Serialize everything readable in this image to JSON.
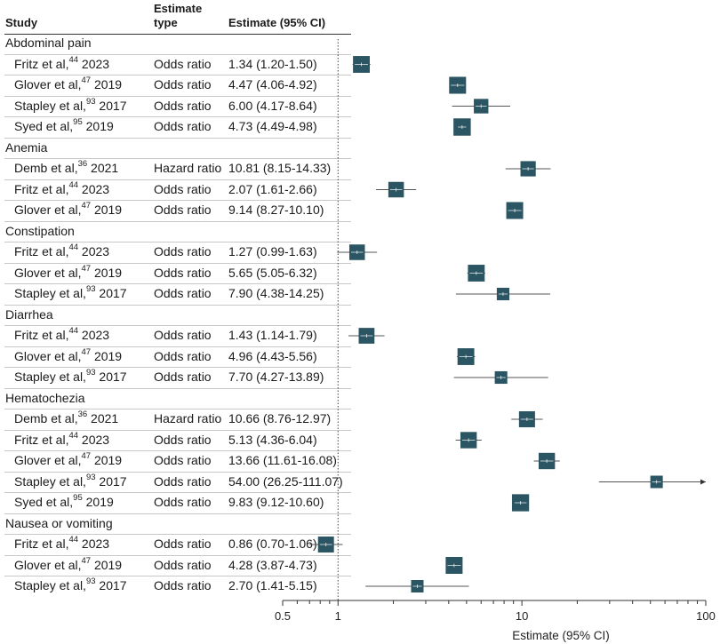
{
  "header": {
    "study": "Study",
    "estimate_type_line1": "Estimate",
    "estimate_type_line2": "type",
    "estimate_ci": "Estimate (95% CI)"
  },
  "groups": [
    {
      "label": "Abdominal pain",
      "rows": [
        {
          "author": "Fritz et al,",
          "ref": "44",
          "year": "2023",
          "type": "Odds ratio",
          "ci_text": "1.34 (1.20-1.50)"
        },
        {
          "author": "Glover et al,",
          "ref": "47",
          "year": "2019",
          "type": "Odds ratio",
          "ci_text": "4.47 (4.06-4.92)"
        },
        {
          "author": "Stapley et al,",
          "ref": "93",
          "year": "2017",
          "type": "Odds ratio",
          "ci_text": "6.00 (4.17-8.64)"
        },
        {
          "author": "Syed et al,",
          "ref": "95",
          "year": "2019",
          "type": "Odds ratio",
          "ci_text": "4.73 (4.49-4.98)"
        }
      ]
    },
    {
      "label": "Anemia",
      "rows": [
        {
          "author": "Demb et al,",
          "ref": "36",
          "year": "2021",
          "type": "Hazard ratio",
          "ci_text": "10.81 (8.15-14.33)"
        },
        {
          "author": "Fritz et al,",
          "ref": "44",
          "year": "2023",
          "type": "Odds ratio",
          "ci_text": "2.07 (1.61-2.66)"
        },
        {
          "author": "Glover et al,",
          "ref": "47",
          "year": "2019",
          "type": "Odds ratio",
          "ci_text": "9.14 (8.27-10.10)"
        }
      ]
    },
    {
      "label": "Constipation",
      "rows": [
        {
          "author": "Fritz et al,",
          "ref": "44",
          "year": "2023",
          "type": "Odds ratio",
          "ci_text": "1.27 (0.99-1.63)"
        },
        {
          "author": "Glover et al,",
          "ref": "47",
          "year": "2019",
          "type": "Odds ratio",
          "ci_text": "5.65 (5.05-6.32)"
        },
        {
          "author": "Stapley et al,",
          "ref": "93",
          "year": "2017",
          "type": "Odds ratio",
          "ci_text": "7.90 (4.38-14.25)"
        }
      ]
    },
    {
      "label": "Diarrhea",
      "rows": [
        {
          "author": "Fritz et al,",
          "ref": "44",
          "year": "2023",
          "type": "Odds ratio",
          "ci_text": "1.43 (1.14-1.79)"
        },
        {
          "author": "Glover et al,",
          "ref": "47",
          "year": "2019",
          "type": "Odds ratio",
          "ci_text": "4.96 (4.43-5.56)"
        },
        {
          "author": "Stapley et al,",
          "ref": "93",
          "year": "2017",
          "type": "Odds ratio",
          "ci_text": "7.70 (4.27-13.89)"
        }
      ]
    },
    {
      "label": "Hematochezia",
      "rows": [
        {
          "author": "Demb et al,",
          "ref": "36",
          "year": "2021",
          "type": "Hazard ratio",
          "ci_text": "10.66 (8.76-12.97)"
        },
        {
          "author": "Fritz et al,",
          "ref": "44",
          "year": "2023",
          "type": "Odds ratio",
          "ci_text": "5.13 (4.36-6.04)"
        },
        {
          "author": "Glover et al,",
          "ref": "47",
          "year": "2019",
          "type": "Odds ratio",
          "ci_text": "13.66 (11.61-16.08)"
        },
        {
          "author": "Stapley et al,",
          "ref": "93",
          "year": "2017",
          "type": "Odds ratio",
          "ci_text": "54.00 (26.25-111.07)"
        },
        {
          "author": "Syed et al,",
          "ref": "95",
          "year": "2019",
          "type": "Odds ratio",
          "ci_text": "9.83 (9.12-10.60)"
        }
      ]
    },
    {
      "label": "Nausea or vomiting",
      "rows": [
        {
          "author": "Fritz et al,",
          "ref": "44",
          "year": "2023",
          "type": "Odds ratio",
          "ci_text": "0.86 (0.70-1.06)"
        },
        {
          "author": "Glover et al,",
          "ref": "47",
          "year": "2019",
          "type": "Odds ratio",
          "ci_text": "4.28 (3.87-4.73)"
        },
        {
          "author": "Stapley et al,",
          "ref": "93",
          "year": "2017",
          "type": "Odds ratio",
          "ci_text": "2.70 (1.41-5.15)"
        }
      ]
    }
  ],
  "chart_data": {
    "type": "forest",
    "xlabel": "Estimate (95% CI)",
    "x_scale": "log",
    "xlim": [
      0.5,
      100
    ],
    "x_ticks": [
      0.5,
      1,
      10,
      100
    ],
    "x_tick_labels": [
      "0.5",
      "1",
      "10",
      "100"
    ],
    "reference_line": 1,
    "marker_color": "#2b5562",
    "points": [
      {
        "group": "Abdominal pain",
        "study": "Fritz et al, 2023",
        "estimate": 1.34,
        "lower": 1.2,
        "upper": 1.5
      },
      {
        "group": "Abdominal pain",
        "study": "Glover et al, 2019",
        "estimate": 4.47,
        "lower": 4.06,
        "upper": 4.92
      },
      {
        "group": "Abdominal pain",
        "study": "Stapley et al, 2017",
        "estimate": 6.0,
        "lower": 4.17,
        "upper": 8.64
      },
      {
        "group": "Abdominal pain",
        "study": "Syed et al, 2019",
        "estimate": 4.73,
        "lower": 4.49,
        "upper": 4.98
      },
      {
        "group": "Anemia",
        "study": "Demb et al, 2021",
        "estimate": 10.81,
        "lower": 8.15,
        "upper": 14.33
      },
      {
        "group": "Anemia",
        "study": "Fritz et al, 2023",
        "estimate": 2.07,
        "lower": 1.61,
        "upper": 2.66
      },
      {
        "group": "Anemia",
        "study": "Glover et al, 2019",
        "estimate": 9.14,
        "lower": 8.27,
        "upper": 10.1
      },
      {
        "group": "Constipation",
        "study": "Fritz et al, 2023",
        "estimate": 1.27,
        "lower": 0.99,
        "upper": 1.63
      },
      {
        "group": "Constipation",
        "study": "Glover et al, 2019",
        "estimate": 5.65,
        "lower": 5.05,
        "upper": 6.32
      },
      {
        "group": "Constipation",
        "study": "Stapley et al, 2017",
        "estimate": 7.9,
        "lower": 4.38,
        "upper": 14.25
      },
      {
        "group": "Diarrhea",
        "study": "Fritz et al, 2023",
        "estimate": 1.43,
        "lower": 1.14,
        "upper": 1.79
      },
      {
        "group": "Diarrhea",
        "study": "Glover et al, 2019",
        "estimate": 4.96,
        "lower": 4.43,
        "upper": 5.56
      },
      {
        "group": "Diarrhea",
        "study": "Stapley et al, 2017",
        "estimate": 7.7,
        "lower": 4.27,
        "upper": 13.89
      },
      {
        "group": "Hematochezia",
        "study": "Demb et al, 2021",
        "estimate": 10.66,
        "lower": 8.76,
        "upper": 12.97
      },
      {
        "group": "Hematochezia",
        "study": "Fritz et al, 2023",
        "estimate": 5.13,
        "lower": 4.36,
        "upper": 6.04
      },
      {
        "group": "Hematochezia",
        "study": "Glover et al, 2019",
        "estimate": 13.66,
        "lower": 11.61,
        "upper": 16.08
      },
      {
        "group": "Hematochezia",
        "study": "Stapley et al, 2017",
        "estimate": 54.0,
        "lower": 26.25,
        "upper": 111.07
      },
      {
        "group": "Hematochezia",
        "study": "Syed et al, 2019",
        "estimate": 9.83,
        "lower": 9.12,
        "upper": 10.6
      },
      {
        "group": "Nausea or vomiting",
        "study": "Fritz et al, 2023",
        "estimate": 0.86,
        "lower": 0.7,
        "upper": 1.06
      },
      {
        "group": "Nausea or vomiting",
        "study": "Glover et al, 2019",
        "estimate": 4.28,
        "lower": 3.87,
        "upper": 4.73
      },
      {
        "group": "Nausea or vomiting",
        "study": "Stapley et al, 2017",
        "estimate": 2.7,
        "lower": 1.41,
        "upper": 5.15
      }
    ]
  }
}
